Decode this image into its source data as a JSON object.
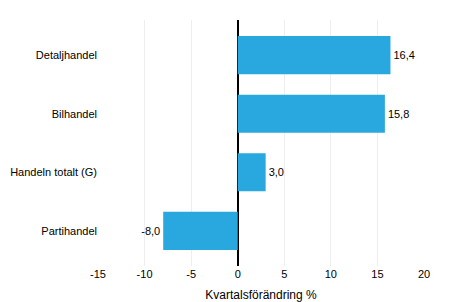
{
  "chart_data": {
    "type": "bar",
    "orientation": "horizontal",
    "categories": [
      "Partihandel",
      "Handeln totalt (G)",
      "Bilhandel",
      "Detaljhandel"
    ],
    "values": [
      -8.0,
      3.0,
      15.8,
      16.4
    ],
    "value_labels": [
      "-8,0",
      "3,0",
      "15,8",
      "16,4"
    ],
    "data_labels": true,
    "color": "#29a8e0",
    "xlim": [
      -15,
      20
    ],
    "xticks": [
      -15,
      -10,
      -5,
      0,
      5,
      10,
      15,
      20
    ],
    "xlabel": "Kvartalsförändring %",
    "grid": true
  }
}
